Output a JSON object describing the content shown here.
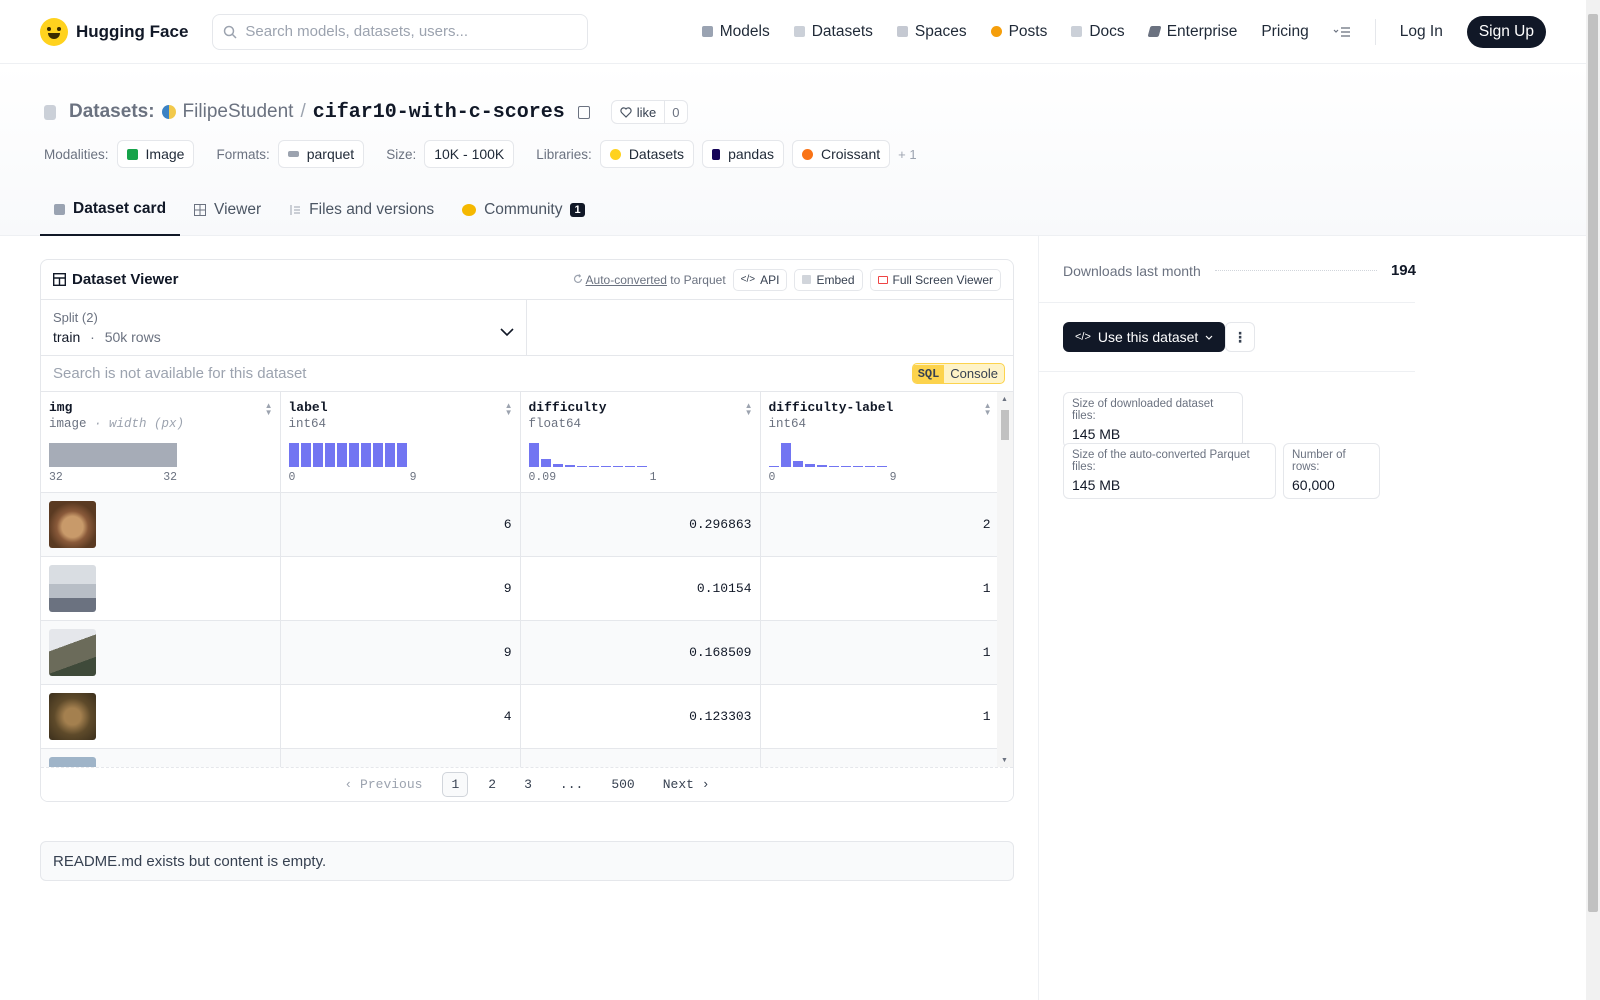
{
  "nav": {
    "brand": "Hugging Face",
    "search_placeholder": "Search models, datasets, users...",
    "links": [
      "Models",
      "Datasets",
      "Spaces",
      "Posts",
      "Docs",
      "Enterprise",
      "Pricing"
    ],
    "login": "Log In",
    "signup": "Sign Up"
  },
  "header": {
    "section": "Datasets:",
    "owner": "FilipeStudent",
    "separator": "/",
    "name": "cifar10-with-c-scores",
    "like_label": "like",
    "like_count": "0",
    "modalities_label": "Modalities:",
    "modality": "Image",
    "formats_label": "Formats:",
    "format": "parquet",
    "size_label": "Size:",
    "size": "10K - 100K",
    "libraries_label": "Libraries:",
    "libraries": [
      "Datasets",
      "pandas",
      "Croissant"
    ],
    "libraries_more": "+ 1"
  },
  "tabs": {
    "card": "Dataset card",
    "viewer": "Viewer",
    "files": "Files and versions",
    "community": "Community",
    "community_badge": "1"
  },
  "viewer": {
    "title": "Dataset Viewer",
    "auto_converted": "Auto-converted",
    "to_parquet": "to Parquet",
    "api": "API",
    "embed": "Embed",
    "fullscreen": "Full Screen Viewer",
    "split_label": "Split (2)",
    "split_name": "train",
    "split_dot": "·",
    "split_rows": "50k rows",
    "search_placeholder": "Search is not available for this dataset",
    "sql_tag": "SQL",
    "sql_label": "Console",
    "columns": [
      {
        "name": "img",
        "type": "image",
        "type_note": "· width (px)",
        "axis_min": "32",
        "axis_max": "32"
      },
      {
        "name": "label",
        "type": "int64",
        "axis_min": "0",
        "axis_max": "9"
      },
      {
        "name": "difficulty",
        "type": "float64",
        "axis_min": "0.09",
        "axis_max": "1"
      },
      {
        "name": "difficulty-label",
        "type": "int64",
        "axis_min": "0",
        "axis_max": "9"
      }
    ],
    "rows": [
      {
        "label": "6",
        "difficulty": "0.296863",
        "difficulty_label": "2"
      },
      {
        "label": "9",
        "difficulty": "0.10154",
        "difficulty_label": "1"
      },
      {
        "label": "9",
        "difficulty": "0.168509",
        "difficulty_label": "1"
      },
      {
        "label": "4",
        "difficulty": "0.123303",
        "difficulty_label": "1"
      }
    ],
    "pager": {
      "previous": "Previous",
      "pages": [
        "1",
        "2",
        "3",
        "...",
        "500"
      ],
      "next": "Next"
    }
  },
  "readme": "README.md exists but content is empty.",
  "sidebar": {
    "downloads_label": "Downloads last month",
    "downloads": "194",
    "use_button": "Use this dataset",
    "stats": [
      {
        "label": "Size of downloaded dataset files:",
        "value": "145 MB"
      },
      {
        "label": "Size of the auto-converted Parquet files:",
        "value": "145 MB"
      },
      {
        "label": "Number of rows:",
        "value": "60,000"
      }
    ]
  }
}
